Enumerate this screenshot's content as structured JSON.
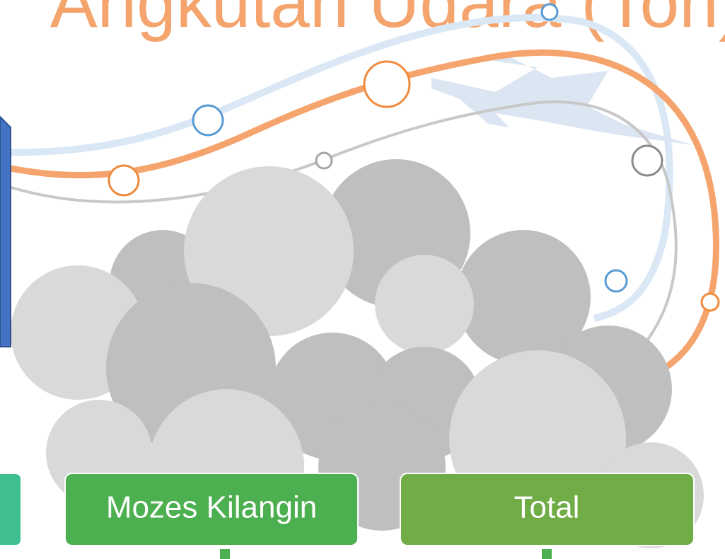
{
  "title": "Angkutan Udara (Ton)",
  "boxes": [
    {
      "label": "Mozes Kilangin"
    },
    {
      "label": "Total"
    }
  ]
}
